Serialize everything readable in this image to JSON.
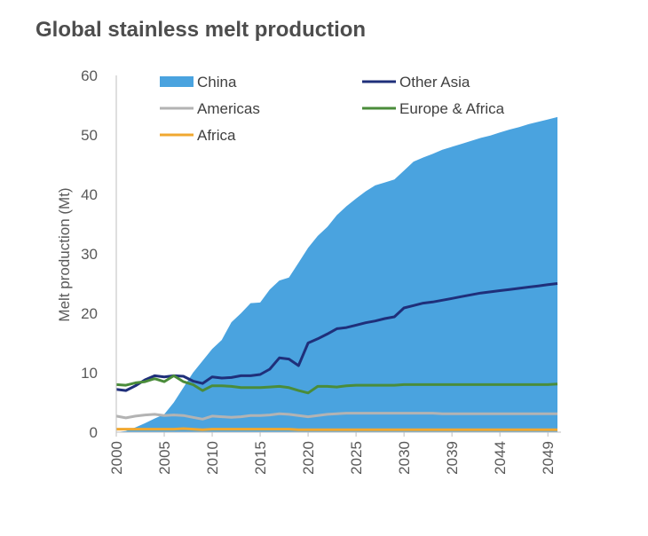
{
  "chart_data": {
    "type": "line",
    "title": "Global stainless melt production",
    "xlabel": "",
    "ylabel": "Melt production (Mt)",
    "ylim": [
      0,
      60
    ],
    "yticks": [
      "0",
      "10",
      "20",
      "30",
      "40",
      "50",
      "60"
    ],
    "xticks": [
      {
        "index": 0,
        "label": "2000"
      },
      {
        "index": 5,
        "label": "2005"
      },
      {
        "index": 10,
        "label": "2010"
      },
      {
        "index": 15,
        "label": "2015"
      },
      {
        "index": 20,
        "label": "2020"
      },
      {
        "index": 25,
        "label": "2025"
      },
      {
        "index": 30,
        "label": "2030"
      },
      {
        "index": 35,
        "label": "2039"
      },
      {
        "index": 40,
        "label": "2044"
      },
      {
        "index": 45,
        "label": "2049"
      }
    ],
    "grid": false,
    "legend_position": "top",
    "series": [
      {
        "name": "China",
        "style": "area",
        "color": "#4aa3df",
        "values": [
          0,
          0.2,
          0.8,
          1.5,
          2.3,
          3.0,
          5.0,
          7.5,
          10.0,
          12.0,
          14.0,
          15.5,
          18.5,
          20.0,
          21.7,
          21.8,
          24.0,
          25.5,
          26.0,
          28.5,
          31.0,
          33.0,
          34.5,
          36.5,
          38.0,
          39.3,
          40.5,
          41.5,
          42.0,
          42.5,
          44.0,
          45.5,
          46.2,
          46.8,
          47.5,
          48.0,
          48.5,
          49.0,
          49.5,
          49.9,
          50.4,
          50.9,
          51.3,
          51.8,
          52.2,
          52.6,
          53.0
        ]
      },
      {
        "name": "Other Asia",
        "style": "line",
        "color": "#1f2f7a",
        "values": [
          7.2,
          7.0,
          7.8,
          8.8,
          9.5,
          9.3,
          9.5,
          9.4,
          8.6,
          8.2,
          9.3,
          9.1,
          9.2,
          9.5,
          9.5,
          9.7,
          10.6,
          12.5,
          12.3,
          11.2,
          15.0,
          15.7,
          16.5,
          17.4,
          17.6,
          18.0,
          18.4,
          18.7,
          19.1,
          19.4,
          20.9,
          21.3,
          21.7,
          21.9,
          22.2,
          22.5,
          22.8,
          23.1,
          23.4,
          23.6,
          23.8,
          24.0,
          24.2,
          24.4,
          24.6,
          24.8,
          25.0
        ]
      },
      {
        "name": "Americas",
        "style": "line",
        "color": "#b3b3b3",
        "values": [
          2.7,
          2.4,
          2.7,
          2.9,
          3.0,
          2.8,
          2.9,
          2.8,
          2.5,
          2.2,
          2.7,
          2.6,
          2.5,
          2.6,
          2.8,
          2.8,
          2.9,
          3.1,
          3.0,
          2.8,
          2.6,
          2.8,
          3.0,
          3.1,
          3.2,
          3.2,
          3.2,
          3.2,
          3.2,
          3.2,
          3.2,
          3.2,
          3.2,
          3.2,
          3.1,
          3.1,
          3.1,
          3.1,
          3.1,
          3.1,
          3.1,
          3.1,
          3.1,
          3.1,
          3.1,
          3.1,
          3.1
        ]
      },
      {
        "name": "Europe & Africa",
        "style": "line",
        "color": "#4a8c3a",
        "values": [
          8.0,
          7.9,
          8.3,
          8.5,
          9.0,
          8.5,
          9.5,
          8.5,
          8.0,
          7.0,
          7.8,
          7.8,
          7.7,
          7.5,
          7.5,
          7.5,
          7.6,
          7.7,
          7.5,
          7.0,
          6.6,
          7.7,
          7.7,
          7.6,
          7.8,
          7.9,
          7.9,
          7.9,
          7.9,
          7.9,
          8.0,
          8.0,
          8.0,
          8.0,
          8.0,
          8.0,
          8.0,
          8.0,
          8.0,
          8.0,
          8.0,
          8.0,
          8.0,
          8.0,
          8.0,
          8.0,
          8.1
        ]
      },
      {
        "name": "Africa",
        "style": "line",
        "color": "#f0a830",
        "values": [
          0.5,
          0.5,
          0.5,
          0.5,
          0.5,
          0.5,
          0.5,
          0.6,
          0.5,
          0.4,
          0.5,
          0.5,
          0.5,
          0.5,
          0.5,
          0.5,
          0.5,
          0.5,
          0.5,
          0.4,
          0.4,
          0.4,
          0.4,
          0.4,
          0.4,
          0.4,
          0.4,
          0.4,
          0.4,
          0.4,
          0.4,
          0.4,
          0.4,
          0.4,
          0.4,
          0.4,
          0.4,
          0.4,
          0.4,
          0.4,
          0.4,
          0.4,
          0.4,
          0.4,
          0.4,
          0.4,
          0.4
        ]
      }
    ]
  }
}
